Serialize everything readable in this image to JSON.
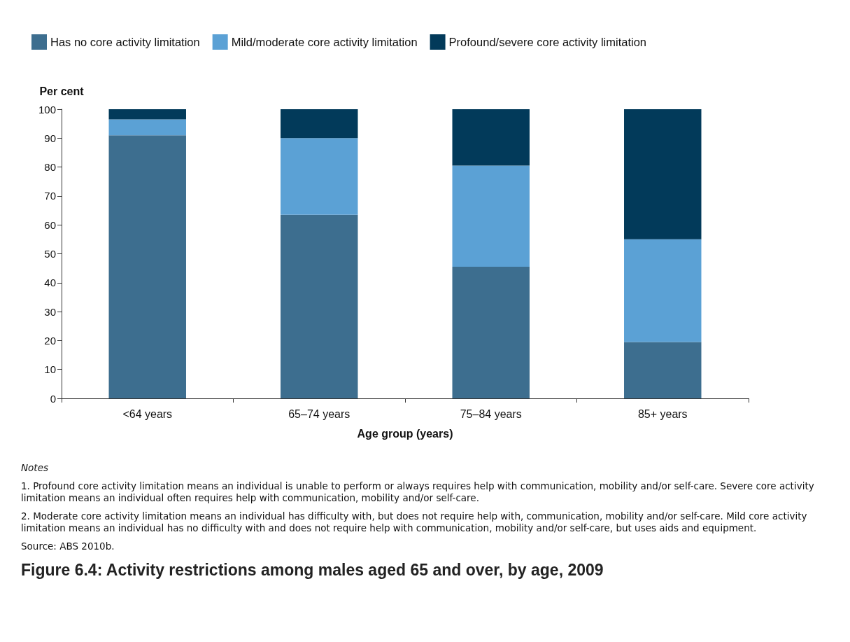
{
  "chart_data": {
    "type": "bar",
    "stacked": true,
    "title": "Figure 6.4: Activity restrictions among males aged 65 and over, by age, 2009",
    "xlabel": "Age group (years)",
    "ylabel": "Per cent",
    "categories": [
      "<64 years",
      "65–74 years",
      "75–84 years",
      "85+ years"
    ],
    "series": [
      {
        "name": "Has no core activity limitation",
        "color": "#3d6e8f",
        "values": [
          91,
          63.5,
          45.5,
          19.5
        ]
      },
      {
        "name": "Mild/moderate core activity limitation",
        "color": "#5ba1d5",
        "values": [
          5.5,
          26.5,
          35,
          35.5
        ]
      },
      {
        "name": "Profound/severe core activity limitation",
        "color": "#023a5a",
        "values": [
          3.5,
          10,
          19.5,
          45
        ]
      }
    ],
    "ylim": [
      0,
      100
    ],
    "yticks": [
      0,
      10,
      20,
      30,
      40,
      50,
      60,
      70,
      80,
      90,
      100
    ],
    "grid": false,
    "legend": "top left",
    "annotations": [
      "Notes",
      "1. Profound core activity limitation means an individual is unable to perform or always requires help with communication, mobility and/or self-care. Severe core activity limitation means an individual often requires help with communication, mobility and/or self-care.",
      "2. Moderate core activity limitation means an individual has difficulty with, but does not require help with, communication, mobility and/or self-care. Mild core activity limitation means an individual has no difficulty with and does not require help with communication, mobility and/or self-care, but uses aids and equipment.",
      "Source: ABS 2010b."
    ]
  }
}
